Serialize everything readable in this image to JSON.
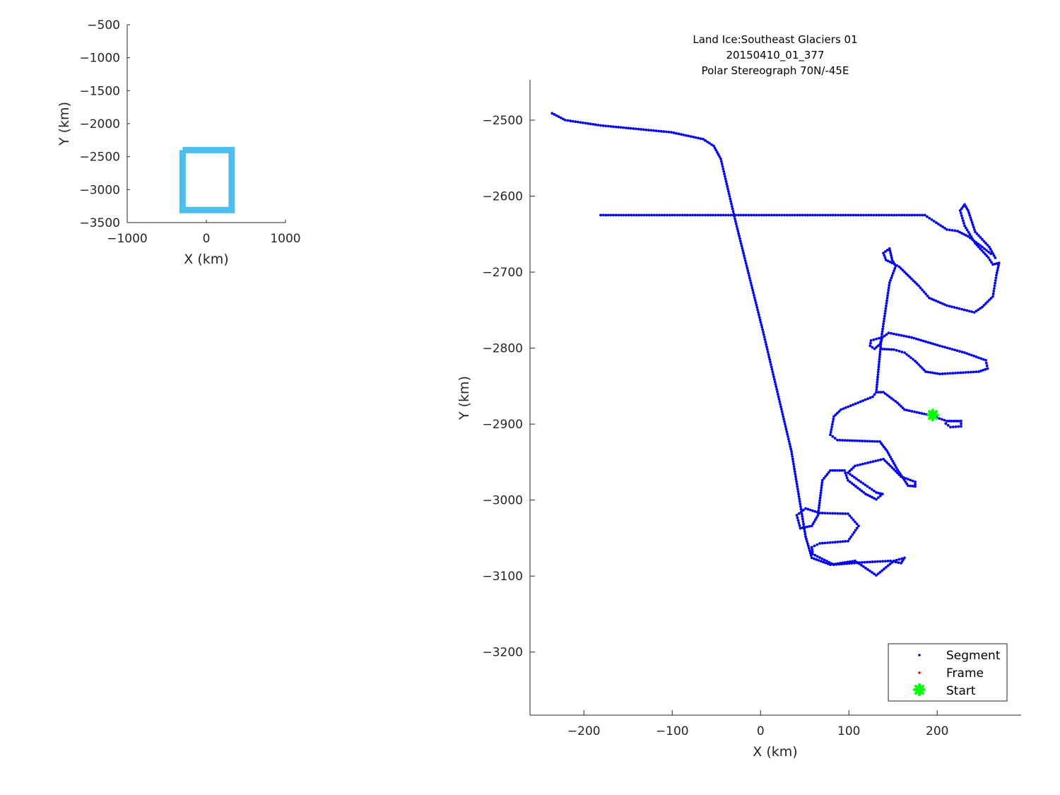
{
  "chart_data": [
    {
      "type": "line",
      "xlabel": "X (km)",
      "ylabel": "Y (km)",
      "xlim": [
        -1000,
        1000
      ],
      "ylim": [
        -3500,
        -500
      ],
      "xticks": [
        "-1000",
        "0",
        "1000"
      ],
      "yticks": [
        "-500",
        "-1000",
        "-1500",
        "-2000",
        "-2500",
        "-3000",
        "-3500"
      ],
      "xtick_values": [
        -1000,
        0,
        1000
      ],
      "ytick_values": [
        -500,
        -1000,
        -1500,
        -2000,
        -2500,
        -3000,
        -3500
      ],
      "outline": [
        [
          -300,
          -2400
        ],
        [
          320,
          -2400
        ],
        [
          320,
          -3310
        ],
        [
          -300,
          -3310
        ],
        [
          -300,
          -2400
        ]
      ],
      "color": "#4DBEEE"
    },
    {
      "type": "scatter",
      "title": [
        "Land Ice:Southeast Glaciers 01",
        "20150410_01_377",
        "Polar Stereograph 70N/-45E"
      ],
      "xlabel": "X (km)",
      "ylabel": "Y (km)",
      "xlim": [
        -261,
        295
      ],
      "ylim": [
        -3283,
        -2447
      ],
      "xticks": [
        "-200",
        "-100",
        "0",
        "100",
        "200"
      ],
      "xtick_values": [
        -200,
        -100,
        0,
        100,
        200
      ],
      "yticks": [
        "-2500",
        "-2600",
        "-2700",
        "-2800",
        "-2900",
        "-3000",
        "-3100",
        "-3200"
      ],
      "ytick_values": [
        -2500,
        -2600,
        -2700,
        -2800,
        -2900,
        -3000,
        -3100,
        -3200
      ],
      "legend": {
        "position": "bottom-right",
        "entries": [
          {
            "label": "Segment",
            "color": "#0000EE",
            "marker": "dot"
          },
          {
            "label": "Frame",
            "color": "#FF0000",
            "marker": "dot"
          },
          {
            "label": "Start",
            "color": "#00FF00",
            "marker": "asterisk"
          }
        ]
      },
      "segment_paths": [
        [
          [
            -236,
            -2491
          ],
          [
            -221,
            -2500
          ],
          [
            -181,
            -2507
          ],
          [
            -101,
            -2516
          ],
          [
            -65,
            -2525
          ],
          [
            -53,
            -2534
          ],
          [
            -45,
            -2551
          ],
          [
            -29,
            -2630
          ],
          [
            3,
            -2779
          ],
          [
            35,
            -2936
          ],
          [
            51,
            -3048
          ],
          [
            58,
            -3076
          ]
        ],
        [
          [
            58,
            -3076
          ],
          [
            79,
            -3085
          ],
          [
            107,
            -3080
          ],
          [
            131,
            -3099
          ],
          [
            151,
            -3080
          ],
          [
            163,
            -3076
          ],
          [
            159,
            -3083
          ],
          [
            147,
            -3080
          ],
          [
            115,
            -3082
          ],
          [
            83,
            -3085
          ],
          [
            59,
            -3071
          ],
          [
            58,
            -3062
          ],
          [
            67,
            -3057
          ],
          [
            99,
            -3054
          ],
          [
            111,
            -3034
          ],
          [
            99,
            -3018
          ],
          [
            67,
            -3017
          ],
          [
            51,
            -3011
          ],
          [
            41,
            -3020
          ],
          [
            45,
            -3037
          ],
          [
            58,
            -3034
          ],
          [
            65,
            -3020
          ],
          [
            70,
            -2974
          ],
          [
            79,
            -2961
          ],
          [
            95,
            -2961
          ],
          [
            99,
            -2974
          ],
          [
            119,
            -2992
          ],
          [
            131,
            -2999
          ],
          [
            138,
            -2992
          ],
          [
            131,
            -2990
          ],
          [
            111,
            -2974
          ],
          [
            99,
            -2964
          ],
          [
            107,
            -2955
          ],
          [
            139,
            -2946
          ],
          [
            147,
            -2955
          ],
          [
            159,
            -2969
          ],
          [
            175,
            -2976
          ],
          [
            175,
            -2982
          ],
          [
            167,
            -2981
          ],
          [
            155,
            -2960
          ],
          [
            143,
            -2935
          ],
          [
            135,
            -2923
          ],
          [
            87,
            -2921
          ],
          [
            79,
            -2914
          ],
          [
            83,
            -2890
          ],
          [
            91,
            -2881
          ],
          [
            127,
            -2864
          ],
          [
            131,
            -2858
          ]
        ],
        [
          [
            131,
            -2858
          ],
          [
            139,
            -2858
          ],
          [
            155,
            -2872
          ],
          [
            163,
            -2881
          ],
          [
            191,
            -2888
          ],
          [
            211,
            -2896
          ],
          [
            227,
            -2896
          ],
          [
            227,
            -2903
          ],
          [
            215,
            -2904
          ],
          [
            207,
            -2897
          ]
        ],
        [
          [
            131,
            -2858
          ],
          [
            137,
            -2785
          ],
          [
            146,
            -2714
          ],
          [
            153,
            -2692
          ],
          [
            149,
            -2684
          ],
          [
            146,
            -2669
          ],
          [
            139,
            -2675
          ],
          [
            142,
            -2684
          ],
          [
            149,
            -2688
          ],
          [
            157,
            -2693
          ],
          [
            179,
            -2718
          ],
          [
            191,
            -2734
          ],
          [
            211,
            -2744
          ],
          [
            242,
            -2753
          ],
          [
            251,
            -2746
          ],
          [
            263,
            -2732
          ],
          [
            267,
            -2704
          ],
          [
            270,
            -2688
          ],
          [
            263,
            -2690
          ],
          [
            258,
            -2681
          ],
          [
            243,
            -2662
          ],
          [
            231,
            -2639
          ],
          [
            226,
            -2619
          ],
          [
            231,
            -2611
          ],
          [
            235,
            -2619
          ],
          [
            243,
            -2647
          ],
          [
            259,
            -2667
          ],
          [
            267,
            -2684
          ]
        ],
        [
          [
            -181,
            -2625
          ],
          [
            186,
            -2625
          ],
          [
            199,
            -2635
          ],
          [
            211,
            -2644
          ],
          [
            223,
            -2646
          ],
          [
            235,
            -2653
          ],
          [
            251,
            -2667
          ],
          [
            263,
            -2678
          ]
        ],
        [
          [
            137,
            -2786
          ],
          [
            125,
            -2790
          ],
          [
            124,
            -2797
          ],
          [
            129,
            -2801
          ],
          [
            135,
            -2795
          ],
          [
            138,
            -2786
          ],
          [
            145,
            -2780
          ],
          [
            171,
            -2786
          ],
          [
            203,
            -2797
          ],
          [
            231,
            -2806
          ],
          [
            255,
            -2816
          ],
          [
            257,
            -2827
          ],
          [
            247,
            -2831
          ],
          [
            203,
            -2834
          ],
          [
            187,
            -2831
          ],
          [
            175,
            -2817
          ],
          [
            163,
            -2806
          ],
          [
            151,
            -2802
          ],
          [
            135,
            -2801
          ]
        ]
      ],
      "start_point": [
        195,
        -2888
      ]
    }
  ]
}
